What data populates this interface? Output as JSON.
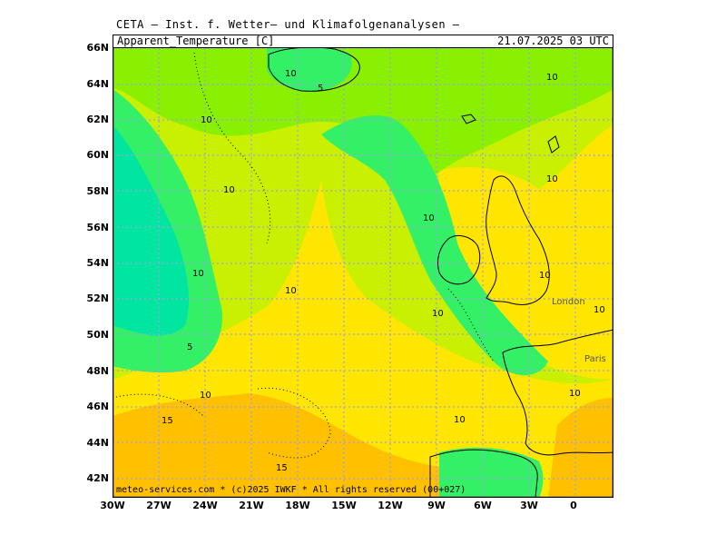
{
  "header": {
    "title": "CETA — Inst. f. Wetter— und Klimafolgenanalysen —"
  },
  "label_bar": {
    "parameter": "Apparent_Temperature [C]",
    "datetime": "21.07.2025 03 UTC"
  },
  "footer": {
    "credit": "meteo-services.com * (c)2025 IWKF * All rights reserved (00+027)"
  },
  "lat_labels": [
    "66N",
    "64N",
    "62N",
    "60N",
    "58N",
    "56N",
    "54N",
    "52N",
    "50N",
    "48N",
    "46N",
    "44N",
    "42N"
  ],
  "lon_labels": [
    "30W",
    "27W",
    "24W",
    "21W",
    "18W",
    "15W",
    "12W",
    "9W",
    "6W",
    "3W",
    "0"
  ],
  "contour_labels": [
    "10",
    "10",
    "5",
    "10",
    "10",
    "10",
    "10",
    "10",
    "10",
    "10",
    "10",
    "5",
    "10",
    "10",
    "10",
    "15",
    "10",
    "15"
  ],
  "cities": [
    "London",
    "Paris"
  ],
  "colors": {
    "t0_5": "#00e6a0",
    "t5_10": "#33f066",
    "t10_12": "#88f000",
    "t12_15": "#c8f000",
    "t15_18": "#ffe600",
    "t18_21": "#ffc000",
    "t21_24": "#ff9a00",
    "grid": "#a0a0e6",
    "land_outline": "#000000"
  }
}
